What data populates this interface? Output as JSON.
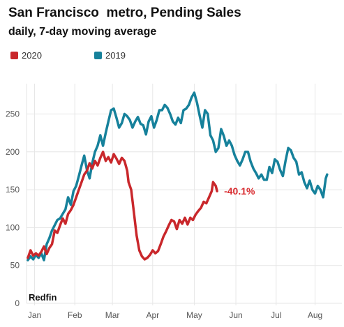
{
  "header": {
    "title": "San Francisco  metro, Pending Sales",
    "subtitle": "daily, 7-day moving average"
  },
  "source": "Redfin",
  "colors": {
    "2020": "#c9272b",
    "2019": "#16819b",
    "grid": "#e6e6e6",
    "annotation": "#d92b2f"
  },
  "chart_data": {
    "type": "line",
    "title": "San Francisco  metro, Pending Sales",
    "subtitle": "daily, 7-day moving average",
    "xlabel": "",
    "ylabel": "",
    "ylim": [
      0,
      290
    ],
    "xlim": [
      0,
      235
    ],
    "x_unit": "day of year",
    "y_ticks": [
      0,
      50,
      100,
      150,
      200,
      250
    ],
    "x_ticks": [
      {
        "label": "Jan",
        "x": 6
      },
      {
        "label": "Feb",
        "x": 36
      },
      {
        "label": "Mar",
        "x": 64
      },
      {
        "label": "Apr",
        "x": 94
      },
      {
        "label": "May",
        "x": 125
      },
      {
        "label": "Jun",
        "x": 156
      },
      {
        "label": "Jul",
        "x": 186
      },
      {
        "label": "Aug",
        "x": 215
      }
    ],
    "grid": true,
    "legend_position": "top-left",
    "annotations": [
      {
        "text": "-40.1%",
        "series": "2020",
        "x": 142,
        "y": 148
      }
    ],
    "series": [
      {
        "name": "2020",
        "color": "#c9272b",
        "points": [
          [
            1,
            60
          ],
          [
            3,
            70
          ],
          [
            5,
            63
          ],
          [
            7,
            66
          ],
          [
            9,
            63
          ],
          [
            11,
            68
          ],
          [
            13,
            75
          ],
          [
            15,
            65
          ],
          [
            17,
            73
          ],
          [
            19,
            78
          ],
          [
            21,
            96
          ],
          [
            23,
            93
          ],
          [
            25,
            103
          ],
          [
            27,
            112
          ],
          [
            29,
            105
          ],
          [
            31,
            118
          ],
          [
            33,
            123
          ],
          [
            35,
            130
          ],
          [
            37,
            140
          ],
          [
            39,
            150
          ],
          [
            41,
            160
          ],
          [
            43,
            170
          ],
          [
            45,
            175
          ],
          [
            47,
            185
          ],
          [
            49,
            178
          ],
          [
            51,
            188
          ],
          [
            53,
            182
          ],
          [
            55,
            192
          ],
          [
            57,
            200
          ],
          [
            59,
            188
          ],
          [
            61,
            193
          ],
          [
            63,
            186
          ],
          [
            65,
            197
          ],
          [
            67,
            191
          ],
          [
            69,
            184
          ],
          [
            71,
            192
          ],
          [
            73,
            188
          ],
          [
            75,
            175
          ],
          [
            76,
            160
          ],
          [
            78,
            150
          ],
          [
            80,
            120
          ],
          [
            82,
            90
          ],
          [
            84,
            70
          ],
          [
            86,
            62
          ],
          [
            88,
            58
          ],
          [
            90,
            60
          ],
          [
            92,
            64
          ],
          [
            94,
            70
          ],
          [
            96,
            66
          ],
          [
            98,
            69
          ],
          [
            100,
            78
          ],
          [
            102,
            88
          ],
          [
            104,
            95
          ],
          [
            106,
            103
          ],
          [
            108,
            110
          ],
          [
            110,
            108
          ],
          [
            112,
            98
          ],
          [
            114,
            110
          ],
          [
            116,
            105
          ],
          [
            118,
            113
          ],
          [
            120,
            104
          ],
          [
            122,
            113
          ],
          [
            124,
            110
          ],
          [
            126,
            117
          ],
          [
            128,
            122
          ],
          [
            130,
            126
          ],
          [
            132,
            134
          ],
          [
            134,
            132
          ],
          [
            136,
            140
          ],
          [
            138,
            148
          ],
          [
            139,
            160
          ],
          [
            141,
            155
          ],
          [
            142,
            148
          ]
        ]
      },
      {
        "name": "2019",
        "color": "#16819b",
        "points": [
          [
            1,
            57
          ],
          [
            3,
            62
          ],
          [
            5,
            58
          ],
          [
            7,
            64
          ],
          [
            9,
            60
          ],
          [
            11,
            66
          ],
          [
            13,
            57
          ],
          [
            15,
            78
          ],
          [
            17,
            86
          ],
          [
            19,
            96
          ],
          [
            21,
            103
          ],
          [
            23,
            110
          ],
          [
            25,
            112
          ],
          [
            27,
            118
          ],
          [
            29,
            124
          ],
          [
            31,
            140
          ],
          [
            33,
            130
          ],
          [
            35,
            148
          ],
          [
            37,
            155
          ],
          [
            39,
            168
          ],
          [
            41,
            182
          ],
          [
            43,
            195
          ],
          [
            45,
            176
          ],
          [
            47,
            165
          ],
          [
            49,
            185
          ],
          [
            51,
            200
          ],
          [
            53,
            208
          ],
          [
            55,
            222
          ],
          [
            57,
            208
          ],
          [
            59,
            225
          ],
          [
            61,
            240
          ],
          [
            63,
            255
          ],
          [
            65,
            257
          ],
          [
            67,
            245
          ],
          [
            69,
            232
          ],
          [
            71,
            238
          ],
          [
            73,
            250
          ],
          [
            75,
            247
          ],
          [
            77,
            242
          ],
          [
            79,
            232
          ],
          [
            81,
            240
          ],
          [
            83,
            246
          ],
          [
            85,
            237
          ],
          [
            87,
            235
          ],
          [
            89,
            223
          ],
          [
            91,
            240
          ],
          [
            93,
            247
          ],
          [
            95,
            232
          ],
          [
            97,
            242
          ],
          [
            99,
            255
          ],
          [
            101,
            255
          ],
          [
            103,
            262
          ],
          [
            105,
            258
          ],
          [
            107,
            250
          ],
          [
            109,
            240
          ],
          [
            111,
            236
          ],
          [
            113,
            245
          ],
          [
            115,
            238
          ],
          [
            117,
            255
          ],
          [
            119,
            257
          ],
          [
            121,
            262
          ],
          [
            123,
            272
          ],
          [
            125,
            278
          ],
          [
            127,
            265
          ],
          [
            129,
            248
          ],
          [
            131,
            232
          ],
          [
            133,
            255
          ],
          [
            135,
            250
          ],
          [
            137,
            222
          ],
          [
            139,
            215
          ],
          [
            141,
            200
          ],
          [
            143,
            205
          ],
          [
            145,
            230
          ],
          [
            147,
            221
          ],
          [
            149,
            208
          ],
          [
            151,
            215
          ],
          [
            153,
            208
          ],
          [
            155,
            196
          ],
          [
            157,
            188
          ],
          [
            159,
            182
          ],
          [
            161,
            190
          ],
          [
            163,
            200
          ],
          [
            165,
            200
          ],
          [
            167,
            187
          ],
          [
            169,
            178
          ],
          [
            171,
            172
          ],
          [
            173,
            165
          ],
          [
            175,
            170
          ],
          [
            177,
            163
          ],
          [
            179,
            163
          ],
          [
            181,
            180
          ],
          [
            183,
            172
          ],
          [
            185,
            190
          ],
          [
            187,
            187
          ],
          [
            189,
            176
          ],
          [
            191,
            168
          ],
          [
            193,
            188
          ],
          [
            195,
            205
          ],
          [
            197,
            202
          ],
          [
            199,
            192
          ],
          [
            201,
            187
          ],
          [
            203,
            170
          ],
          [
            205,
            173
          ],
          [
            207,
            160
          ],
          [
            209,
            152
          ],
          [
            211,
            162
          ],
          [
            213,
            150
          ],
          [
            215,
            145
          ],
          [
            217,
            155
          ],
          [
            219,
            150
          ],
          [
            221,
            140
          ],
          [
            223,
            165
          ],
          [
            224,
            170
          ]
        ]
      }
    ]
  }
}
